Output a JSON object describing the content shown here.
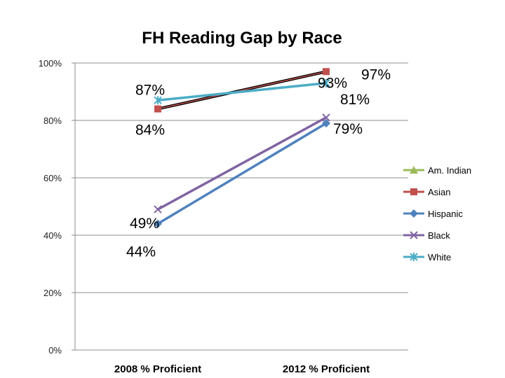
{
  "chart_data": {
    "type": "line",
    "title": "FH  Reading Gap by Race",
    "categories": [
      "2008 % Proficient",
      "2012 % Proficient"
    ],
    "ylim": [
      0,
      100
    ],
    "yticks": [
      "0%",
      "20%",
      "40%",
      "60%",
      "80%",
      "100%"
    ],
    "ytick_values": [
      0,
      20,
      40,
      60,
      80,
      100
    ],
    "grid": true,
    "legend_position": "right",
    "series": [
      {
        "name": "Am. Indian",
        "values": [
          null,
          null
        ],
        "color": "#9BBB59",
        "marker": "triangle"
      },
      {
        "name": "Asian",
        "values": [
          84,
          97
        ],
        "color": "#C0504D",
        "marker": "square"
      },
      {
        "name": "Hispanic",
        "values": [
          44,
          79
        ],
        "color": "#4F81BD",
        "marker": "diamond"
      },
      {
        "name": "Black",
        "values": [
          49,
          81
        ],
        "color": "#8064A2",
        "marker": "x"
      },
      {
        "name": "White",
        "values": [
          87,
          93
        ],
        "color": "#4BACC6",
        "marker": "star"
      }
    ],
    "annotations": [
      {
        "series": "Asian",
        "point": 0,
        "text": "84%"
      },
      {
        "series": "Asian",
        "point": 1,
        "text": "97%"
      },
      {
        "series": "Hispanic",
        "point": 0,
        "text": "44%"
      },
      {
        "series": "Hispanic",
        "point": 1,
        "text": "79%"
      },
      {
        "series": "Black",
        "point": 0,
        "text": "49%"
      },
      {
        "series": "Black",
        "point": 1,
        "text": "81%"
      },
      {
        "series": "White",
        "point": 0,
        "text": "87%"
      },
      {
        "series": "White",
        "point": 1,
        "text": "93%"
      }
    ]
  }
}
